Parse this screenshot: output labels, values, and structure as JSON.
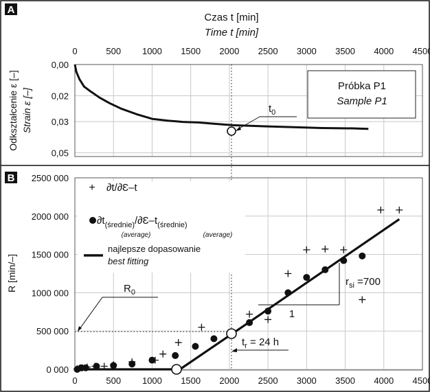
{
  "chart_data": [
    {
      "panel": "A",
      "type": "line",
      "title": "Czas t [min]",
      "subtitle": "Time t [min]",
      "ylabel": "Odkształcenie ε [–]",
      "ylabel_en": "Strain ε [–]",
      "xlim": [
        0,
        4500
      ],
      "ylim": [
        0.0,
        0.05
      ],
      "y_inverted": true,
      "x_ticks": [
        "0",
        "500",
        "1000",
        "1500",
        "2000",
        "2500",
        "3000",
        "3500",
        "4000",
        "4500"
      ],
      "y_ticks": [
        "0,00",
        "0,02",
        "0,03",
        "0,05"
      ],
      "y_tick_values": [
        0.0,
        0.017,
        0.031,
        0.048
      ],
      "grid": true,
      "series": [
        {
          "x": [
            0,
            20,
            60,
            120,
            200,
            320,
            450,
            600,
            800,
            1000,
            1200,
            1400,
            1600,
            1800,
            2050,
            2400,
            2800,
            3200,
            3600,
            3800
          ],
          "y": [
            0.0,
            0.004,
            0.008,
            0.012,
            0.0145,
            0.018,
            0.021,
            0.024,
            0.027,
            0.0295,
            0.0305,
            0.0312,
            0.0315,
            0.0322,
            0.033,
            0.0335,
            0.034,
            0.0345,
            0.0347,
            0.035
          ]
        }
      ],
      "legend_box": [
        "Próbka P1",
        "Sample P1"
      ],
      "annotation": {
        "label": "t",
        "sub": "0",
        "x": 2050,
        "y": 0.033
      }
    },
    {
      "panel": "B",
      "type": "scatter",
      "ylabel": "R [min/–]",
      "xlim": [
        0,
        4500
      ],
      "ylim": [
        0,
        2500000
      ],
      "x_ticks": [
        "0",
        "500",
        "1000",
        "1500",
        "2000",
        "2500",
        "3000",
        "3500",
        "4000",
        "4500"
      ],
      "y_ticks": [
        "0 000",
        "500 000",
        "1000 000",
        "1500 000",
        "2000 000",
        "2500 000"
      ],
      "y_tick_values": [
        0,
        500000,
        1000000,
        1500000,
        2000000,
        2500000
      ],
      "grid": true,
      "legend_placement": "top-left",
      "legend": {
        "plus": "∂t/∂Ɛ–t",
        "dot_main": "∂t",
        "dot_sub1": "(średnie)",
        "dot_sub1_en": "(average)",
        "dot_mid": "/∂Ɛ–t",
        "dot_sub2": "(średnie)",
        "dot_sub2_en": "(average)",
        "line": "najlepsze dopasowanie",
        "line_en": "best fitting"
      },
      "series": [
        {
          "marker": "plus",
          "x": [
            30,
            100,
            160,
            260,
            380,
            500,
            740,
            1040,
            1140,
            1340,
            1640,
            2260,
            2500,
            2760,
            3000,
            3240,
            3480,
            3720,
            3960,
            4200
          ],
          "y": [
            10000,
            20000,
            30000,
            40000,
            40000,
            60000,
            100000,
            120000,
            200000,
            350000,
            550000,
            720000,
            650000,
            1250000,
            1560000,
            1570000,
            1560000,
            910000,
            2080000,
            2080000
          ]
        },
        {
          "marker": "dot",
          "x": [
            30,
            80,
            140,
            280,
            500,
            740,
            1000,
            1300,
            1560,
            1800,
            2260,
            2500,
            2760,
            3000,
            3240,
            3480,
            3720
          ],
          "y": [
            0,
            20000,
            20000,
            40000,
            50000,
            70000,
            120000,
            180000,
            300000,
            400000,
            610000,
            760000,
            1000000,
            1200000,
            1300000,
            1420000,
            1480000
          ]
        },
        {
          "marker": "fit-line",
          "x": [
            0,
            1360,
            2060,
            4200
          ],
          "y": [
            0,
            0,
            480000,
            1960000
          ]
        }
      ],
      "annotations": [
        {
          "label": "R",
          "sub": "0",
          "value_y": 500000
        },
        {
          "label": "t",
          "sub": "r",
          "suffix": " = 24 h",
          "x": 2060
        },
        {
          "label": "r",
          "sub": "si",
          "suffix": " =700"
        },
        {
          "label": "1"
        }
      ]
    }
  ],
  "panel_labels": [
    "A",
    "B"
  ]
}
